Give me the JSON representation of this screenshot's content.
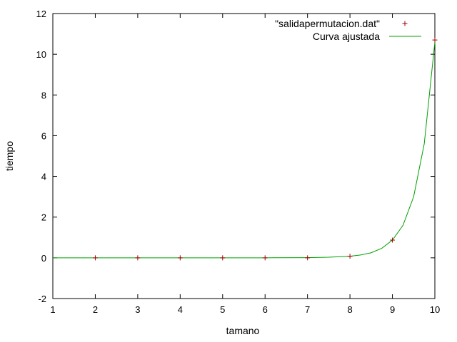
{
  "chart_data": {
    "type": "line",
    "title": "",
    "xlabel": "tamano",
    "ylabel": "tiempo",
    "xlim": [
      1,
      10
    ],
    "ylim": [
      -2,
      12
    ],
    "x_ticks": [
      1,
      2,
      3,
      4,
      5,
      6,
      7,
      8,
      9,
      10
    ],
    "y_ticks": [
      -2,
      0,
      2,
      4,
      6,
      8,
      10,
      12
    ],
    "grid": false,
    "legend_position": "top-right",
    "series": [
      {
        "name": "\"salidapermutacion.dat\"",
        "kind": "points",
        "marker": "plus",
        "color": "#a00000",
        "x": [
          2,
          3,
          4,
          5,
          6,
          7,
          8,
          9,
          10
        ],
        "y": [
          0.0,
          0.0,
          0.0,
          0.0,
          0.0,
          0.0,
          0.08,
          0.87,
          10.7
        ]
      },
      {
        "name": "Curva ajustada",
        "kind": "line",
        "color": "#00a000",
        "x": [
          1,
          2,
          3,
          4,
          5,
          6,
          7,
          7.5,
          8,
          8.25,
          8.5,
          8.75,
          9,
          9.25,
          9.5,
          9.75,
          10
        ],
        "y": [
          0.0,
          0.0,
          0.0,
          0.0,
          0.0,
          0.0,
          0.01,
          0.03,
          0.08,
          0.14,
          0.25,
          0.47,
          0.87,
          1.6,
          3.0,
          5.6,
          10.6
        ]
      }
    ]
  }
}
